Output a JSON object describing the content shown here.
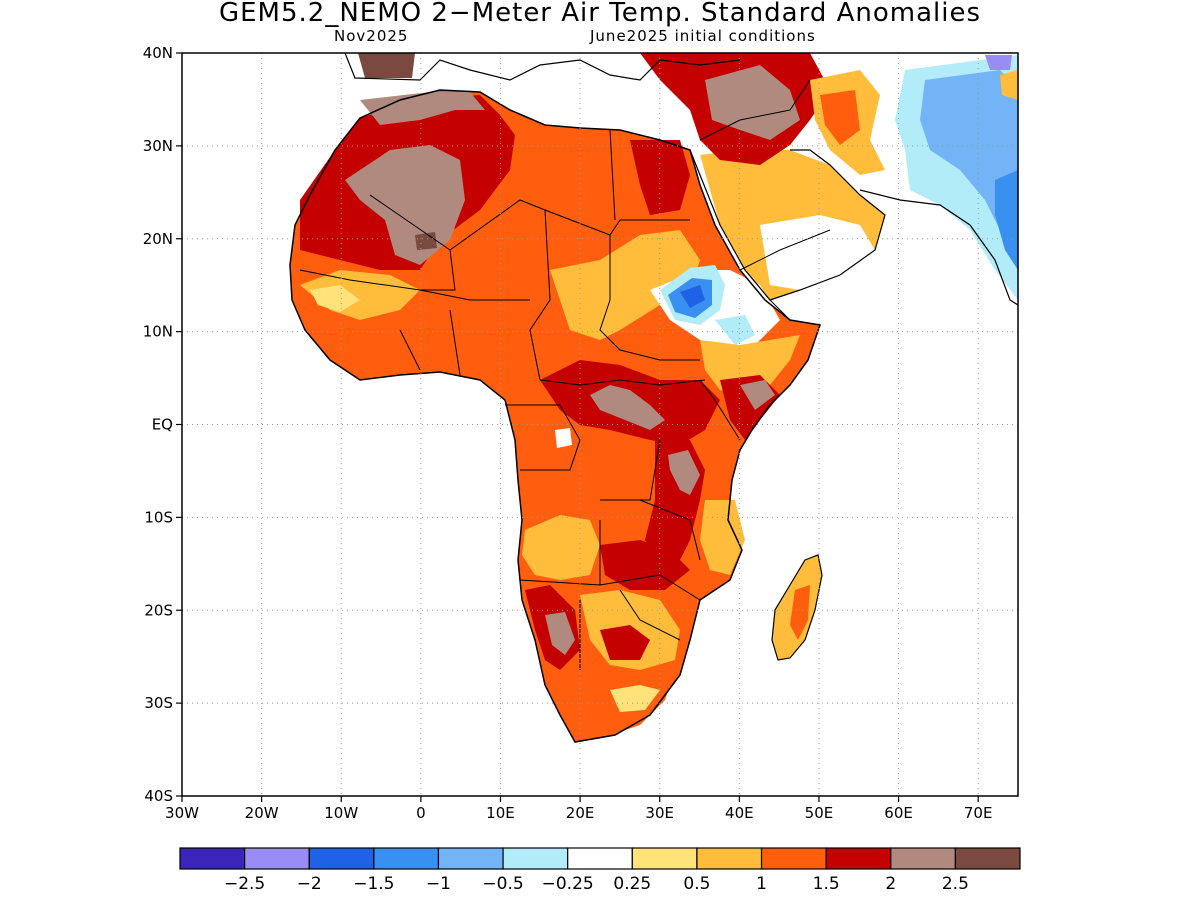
{
  "title": "GEM5.2_NEMO 2−Meter Air Temp. Standard Anomalies",
  "subtitle_left": "Nov2025",
  "subtitle_right": "June2025 initial conditions",
  "lat_labels": [
    "40N",
    "30N",
    "20N",
    "10N",
    "EQ",
    "10S",
    "20S",
    "30S",
    "40S"
  ],
  "lat_values": [
    40,
    30,
    20,
    10,
    0,
    -10,
    -20,
    -30,
    -40
  ],
  "lon_labels": [
    "30W",
    "20W",
    "10W",
    "0",
    "10E",
    "20E",
    "30E",
    "40E",
    "50E",
    "60E",
    "70E"
  ],
  "lon_values": [
    -30,
    -20,
    -10,
    0,
    10,
    20,
    30,
    40,
    50,
    60,
    70
  ],
  "extent": {
    "lon_min": -30,
    "lon_max": 75,
    "lat_min": -40,
    "lat_max": 40
  },
  "colorbar": {
    "colors": [
      "#3a25b8",
      "#9a8cf5",
      "#1f62e6",
      "#3a90f0",
      "#72b4f6",
      "#b2ecf8",
      "#ffffff",
      "#ffe27a",
      "#ffbd3b",
      "#ff5e0f",
      "#c40000",
      "#b08a7e",
      "#7a4a3e"
    ],
    "labels": [
      "−2.5",
      "−2",
      "−1.5",
      "−1",
      "−0.5",
      "−0.25",
      "0.25",
      "0.5",
      "1",
      "1.5",
      "2",
      "2.5"
    ]
  },
  "colors": {
    "brown_dark": "#7a4a3e",
    "brown": "#b08a7e",
    "red": "#c40000",
    "orange": "#ff5e0f",
    "orange_light": "#ffbd3b",
    "yellow": "#ffe27a",
    "white": "#ffffff",
    "cyan": "#b2ecf8",
    "blue_light": "#72b4f6",
    "blue": "#3a90f0",
    "blue_dark": "#1f62e6",
    "purple": "#9a8cf5"
  }
}
